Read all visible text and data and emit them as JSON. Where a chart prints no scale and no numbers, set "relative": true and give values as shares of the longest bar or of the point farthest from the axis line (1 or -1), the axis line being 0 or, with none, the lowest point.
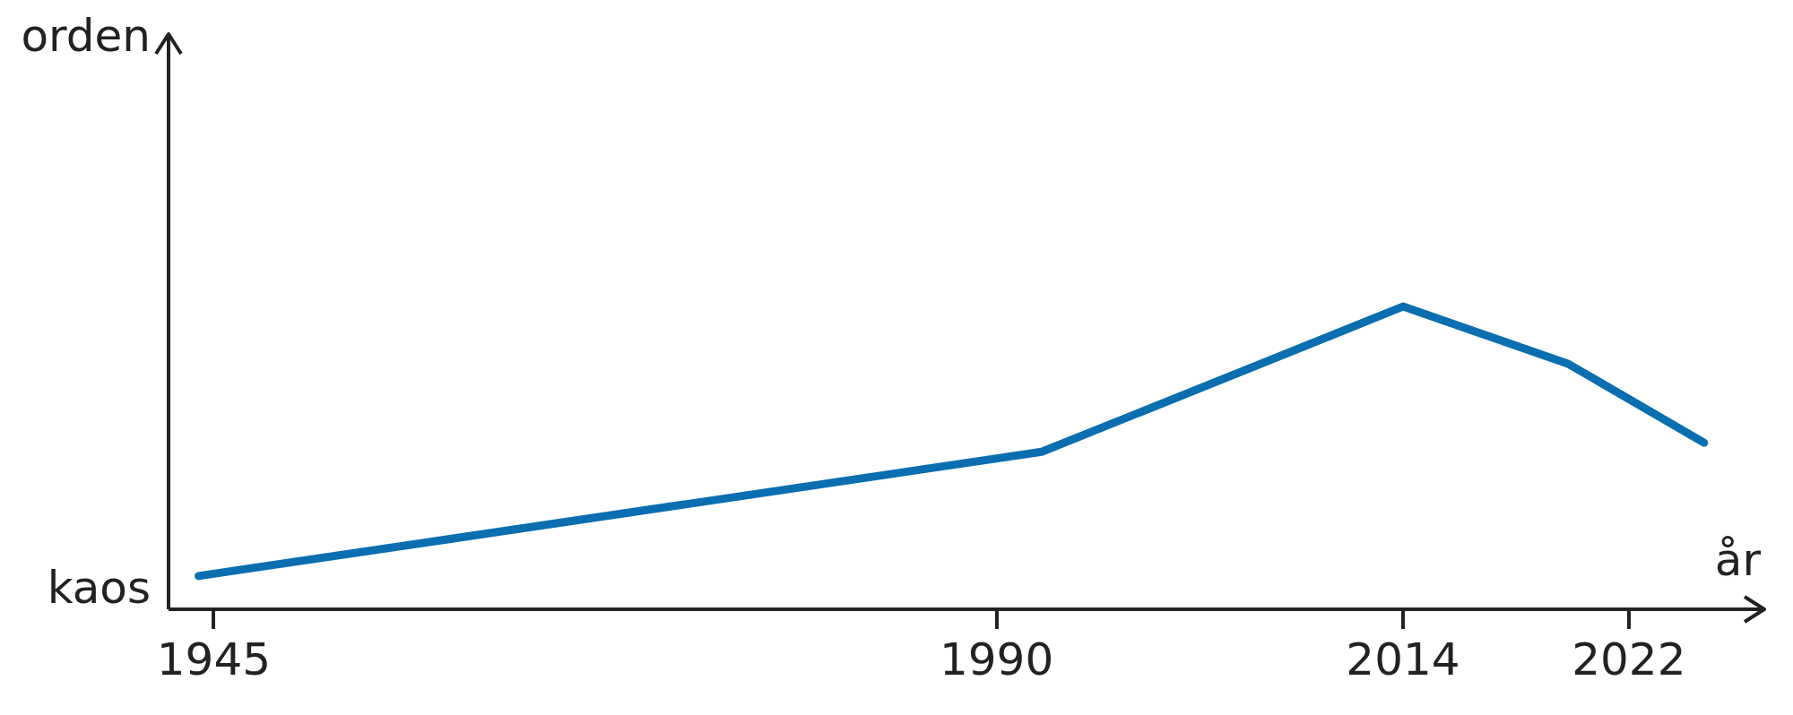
{
  "chart_data": {
    "type": "line",
    "relative": true,
    "xlabel": "år",
    "annotations": [
      "orden",
      "kaos"
    ],
    "marker": "none",
    "categories": [
      null,
      null,
      null,
      "1945",
      null,
      null,
      null,
      null,
      null,
      null,
      null,
      null,
      null,
      null,
      null,
      null,
      null,
      null,
      null,
      null,
      null,
      null,
      null,
      null,
      null,
      null,
      null,
      null,
      null,
      null,
      null,
      null,
      null,
      null,
      null,
      null,
      null,
      null,
      null,
      null,
      null,
      null,
      null,
      null,
      null,
      null,
      null,
      null,
      null,
      null,
      null,
      null,
      null,
      null,
      null,
      "1990",
      null,
      null,
      null,
      null,
      null,
      null,
      null,
      null,
      null,
      null,
      null,
      null,
      null,
      null,
      null,
      null,
      null,
      null,
      null,
      null,
      null,
      null,
      null,
      null,
      null,
      null,
      "2014",
      null,
      null,
      null,
      null,
      null,
      null,
      null,
      null,
      null,
      null,
      null,
      null,
      null,
      null,
      "2022",
      null,
      null,
      null,
      null,
      null,
      null,
      null,
      null,
      null
    ],
    "series": [
      {
        "color": "#0a6eb0",
        "values": [
          null,
          null,
          0.11,
          null,
          null,
          null,
          null,
          null,
          null,
          null,
          null,
          null,
          null,
          null,
          null,
          null,
          null,
          null,
          null,
          null,
          null,
          null,
          null,
          null,
          null,
          null,
          null,
          null,
          null,
          null,
          null,
          null,
          null,
          null,
          null,
          null,
          null,
          null,
          null,
          null,
          null,
          null,
          null,
          null,
          null,
          null,
          null,
          null,
          null,
          null,
          null,
          null,
          null,
          null,
          null,
          null,
          null,
          null,
          0.52,
          null,
          null,
          null,
          null,
          null,
          null,
          null,
          null,
          null,
          null,
          null,
          null,
          null,
          null,
          null,
          null,
          null,
          null,
          null,
          null,
          null,
          null,
          null,
          1,
          null,
          null,
          null,
          null,
          null,
          null,
          null,
          null,
          null,
          null,
          0.81,
          null,
          null,
          null,
          null,
          null,
          null,
          null,
          null,
          0.55,
          null,
          null,
          null,
          null
        ]
      }
    ]
  }
}
